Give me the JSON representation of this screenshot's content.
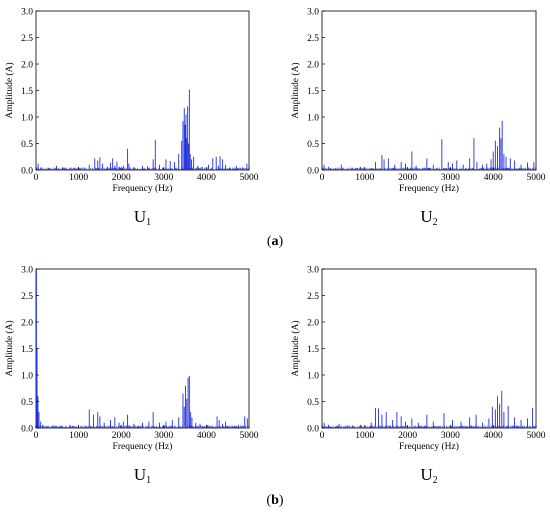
{
  "figure": {
    "rows": [
      {
        "tag_open": "(",
        "tag_letter": "a",
        "tag_close": ")"
      },
      {
        "tag_open": "(",
        "tag_letter": "b",
        "tag_close": ")"
      }
    ]
  },
  "colors": {
    "trace": "#1f2fe0",
    "axis": "#000000"
  },
  "chart_data": [
    {
      "type": "line",
      "caption_main": "U",
      "caption_sub": "1",
      "xlabel": "Frequency (Hz)",
      "ylabel": "Amplitude (A)",
      "xlim": [
        0,
        5000
      ],
      "ylim": [
        0,
        3.0
      ],
      "xticks": [
        "0",
        "1000",
        "2000",
        "3000",
        "4000",
        "5000"
      ],
      "xtick_values": [
        0,
        1000,
        2000,
        3000,
        4000,
        5000
      ],
      "yticks": [
        "0.0",
        "0.5",
        "1.0",
        "1.5",
        "2.0",
        "2.5",
        "3.0"
      ],
      "ytick_values": [
        0,
        0.5,
        1.0,
        1.5,
        2.0,
        2.5,
        3.0
      ],
      "series": [
        {
          "x": [
            50,
            120,
            300,
            480,
            620,
            900,
            1250,
            1380,
            1450,
            1500,
            1560,
            1680,
            1750,
            1800,
            1850,
            1900,
            1960,
            2050,
            2150,
            2180,
            2300,
            2500,
            2620,
            2750,
            2800,
            2900,
            3050,
            3150,
            3250,
            3350,
            3420,
            3450,
            3480,
            3500,
            3520,
            3540,
            3560,
            3580,
            3600,
            3620,
            3650,
            3700,
            3800,
            3900,
            4050,
            4150,
            4230,
            4280,
            4320,
            4380,
            4450,
            4550,
            4700,
            4850,
            4950
          ],
          "y": [
            0.12,
            0.05,
            0.04,
            0.08,
            0.05,
            0.04,
            0.1,
            0.22,
            0.18,
            0.24,
            0.12,
            0.06,
            0.14,
            0.22,
            0.08,
            0.16,
            0.06,
            0.08,
            0.4,
            0.12,
            0.06,
            0.08,
            0.07,
            0.2,
            0.57,
            0.1,
            0.2,
            0.17,
            0.15,
            0.3,
            0.55,
            0.92,
            1.17,
            0.85,
            1.05,
            0.6,
            1.2,
            0.5,
            1.52,
            0.3,
            0.2,
            0.25,
            0.08,
            0.06,
            0.1,
            0.22,
            0.25,
            0.08,
            0.26,
            0.2,
            0.1,
            0.05,
            0.08,
            0.05,
            0.12
          ]
        }
      ]
    },
    {
      "type": "line",
      "caption_main": "U",
      "caption_sub": "2",
      "xlabel": "Frequency (Hz)",
      "ylabel": "Amplitude (A)",
      "xlim": [
        0,
        5000
      ],
      "ylim": [
        0,
        3.0
      ],
      "xticks": [
        "0",
        "1000",
        "2000",
        "3000",
        "4000",
        "5000"
      ],
      "xtick_values": [
        0,
        1000,
        2000,
        3000,
        4000,
        5000
      ],
      "yticks": [
        "0.0",
        "0.5",
        "1.0",
        "1.5",
        "2.0",
        "2.5",
        "3.0"
      ],
      "ytick_values": [
        0,
        0.5,
        1.0,
        1.5,
        2.0,
        2.5,
        3.0
      ],
      "series": [
        {
          "x": [
            50,
            150,
            450,
            700,
            900,
            1250,
            1400,
            1450,
            1550,
            1700,
            1850,
            1950,
            2100,
            2200,
            2450,
            2600,
            2800,
            2950,
            3050,
            3150,
            3300,
            3450,
            3550,
            3620,
            3750,
            3850,
            3950,
            4000,
            4050,
            4100,
            4150,
            4180,
            4210,
            4250,
            4300,
            4400,
            4500,
            4650,
            4800,
            4950
          ],
          "y": [
            0.1,
            0.06,
            0.1,
            0.05,
            0.06,
            0.15,
            0.28,
            0.2,
            0.22,
            0.1,
            0.15,
            0.12,
            0.35,
            0.08,
            0.22,
            0.1,
            0.58,
            0.15,
            0.12,
            0.18,
            0.1,
            0.22,
            0.6,
            0.15,
            0.1,
            0.12,
            0.2,
            0.35,
            0.55,
            0.45,
            0.8,
            0.6,
            0.93,
            0.3,
            0.25,
            0.22,
            0.18,
            0.1,
            0.14,
            0.15
          ]
        }
      ]
    },
    {
      "type": "line",
      "caption_main": "U",
      "caption_sub": "1",
      "xlabel": "Frequency (Hz)",
      "ylabel": "Amplitude (A)",
      "xlim": [
        0,
        5000
      ],
      "ylim": [
        0,
        3.0
      ],
      "xticks": [
        "0",
        "1000",
        "2000",
        "3000",
        "4000",
        "5000"
      ],
      "xtick_values": [
        0,
        1000,
        2000,
        3000,
        4000,
        5000
      ],
      "yticks": [
        "0.0",
        "0.5",
        "1.0",
        "1.5",
        "2.0",
        "2.5",
        "3.0"
      ],
      "ytick_values": [
        0,
        0.5,
        1.0,
        1.5,
        2.0,
        2.5,
        3.0
      ],
      "series": [
        {
          "x": [
            10,
            25,
            45,
            70,
            110,
            160,
            250,
            400,
            600,
            800,
            1000,
            1250,
            1350,
            1450,
            1500,
            1600,
            1750,
            1850,
            1950,
            2050,
            2150,
            2300,
            2500,
            2650,
            2750,
            2900,
            3050,
            3200,
            3350,
            3450,
            3480,
            3510,
            3540,
            3570,
            3600,
            3630,
            3660,
            3750,
            3850,
            4000,
            4250,
            4300,
            4380,
            4450,
            4600,
            4750,
            4900,
            4960
          ],
          "y": [
            3.0,
            1.5,
            0.6,
            0.3,
            0.12,
            0.06,
            0.04,
            0.05,
            0.04,
            0.06,
            0.05,
            0.35,
            0.25,
            0.3,
            0.22,
            0.1,
            0.15,
            0.2,
            0.1,
            0.12,
            0.25,
            0.08,
            0.1,
            0.12,
            0.3,
            0.1,
            0.12,
            0.15,
            0.2,
            0.65,
            0.4,
            0.8,
            0.55,
            0.95,
            0.98,
            0.3,
            0.2,
            0.1,
            0.08,
            0.06,
            0.22,
            0.15,
            0.08,
            0.12,
            0.05,
            0.06,
            0.22,
            0.18
          ]
        }
      ]
    },
    {
      "type": "line",
      "caption_main": "U",
      "caption_sub": "2",
      "xlabel": "Frequency (Hz)",
      "ylabel": "Amplitude (A)",
      "xlim": [
        0,
        5000
      ],
      "ylim": [
        0,
        3.0
      ],
      "xticks": [
        "0",
        "1000",
        "2000",
        "3000",
        "4000",
        "5000"
      ],
      "xtick_values": [
        0,
        1000,
        2000,
        3000,
        4000,
        5000
      ],
      "yticks": [
        "0.0",
        "0.5",
        "1.0",
        "1.5",
        "2.0",
        "2.5",
        "3.0"
      ],
      "ytick_values": [
        0,
        0.5,
        1.0,
        1.5,
        2.0,
        2.5,
        3.0
      ],
      "series": [
        {
          "x": [
            50,
            150,
            400,
            600,
            900,
            1150,
            1250,
            1320,
            1400,
            1500,
            1650,
            1750,
            1850,
            1950,
            2100,
            2250,
            2450,
            2600,
            2850,
            3050,
            3250,
            3450,
            3600,
            3750,
            3900,
            3980,
            4050,
            4100,
            4150,
            4200,
            4250,
            4350,
            4500,
            4650,
            4800,
            4920
          ],
          "y": [
            0.1,
            0.06,
            0.08,
            0.05,
            0.06,
            0.1,
            0.38,
            0.37,
            0.25,
            0.3,
            0.15,
            0.3,
            0.22,
            0.12,
            0.18,
            0.1,
            0.25,
            0.12,
            0.28,
            0.15,
            0.12,
            0.2,
            0.25,
            0.1,
            0.18,
            0.4,
            0.35,
            0.6,
            0.45,
            0.7,
            0.3,
            0.42,
            0.2,
            0.15,
            0.18,
            0.38
          ]
        }
      ]
    }
  ]
}
